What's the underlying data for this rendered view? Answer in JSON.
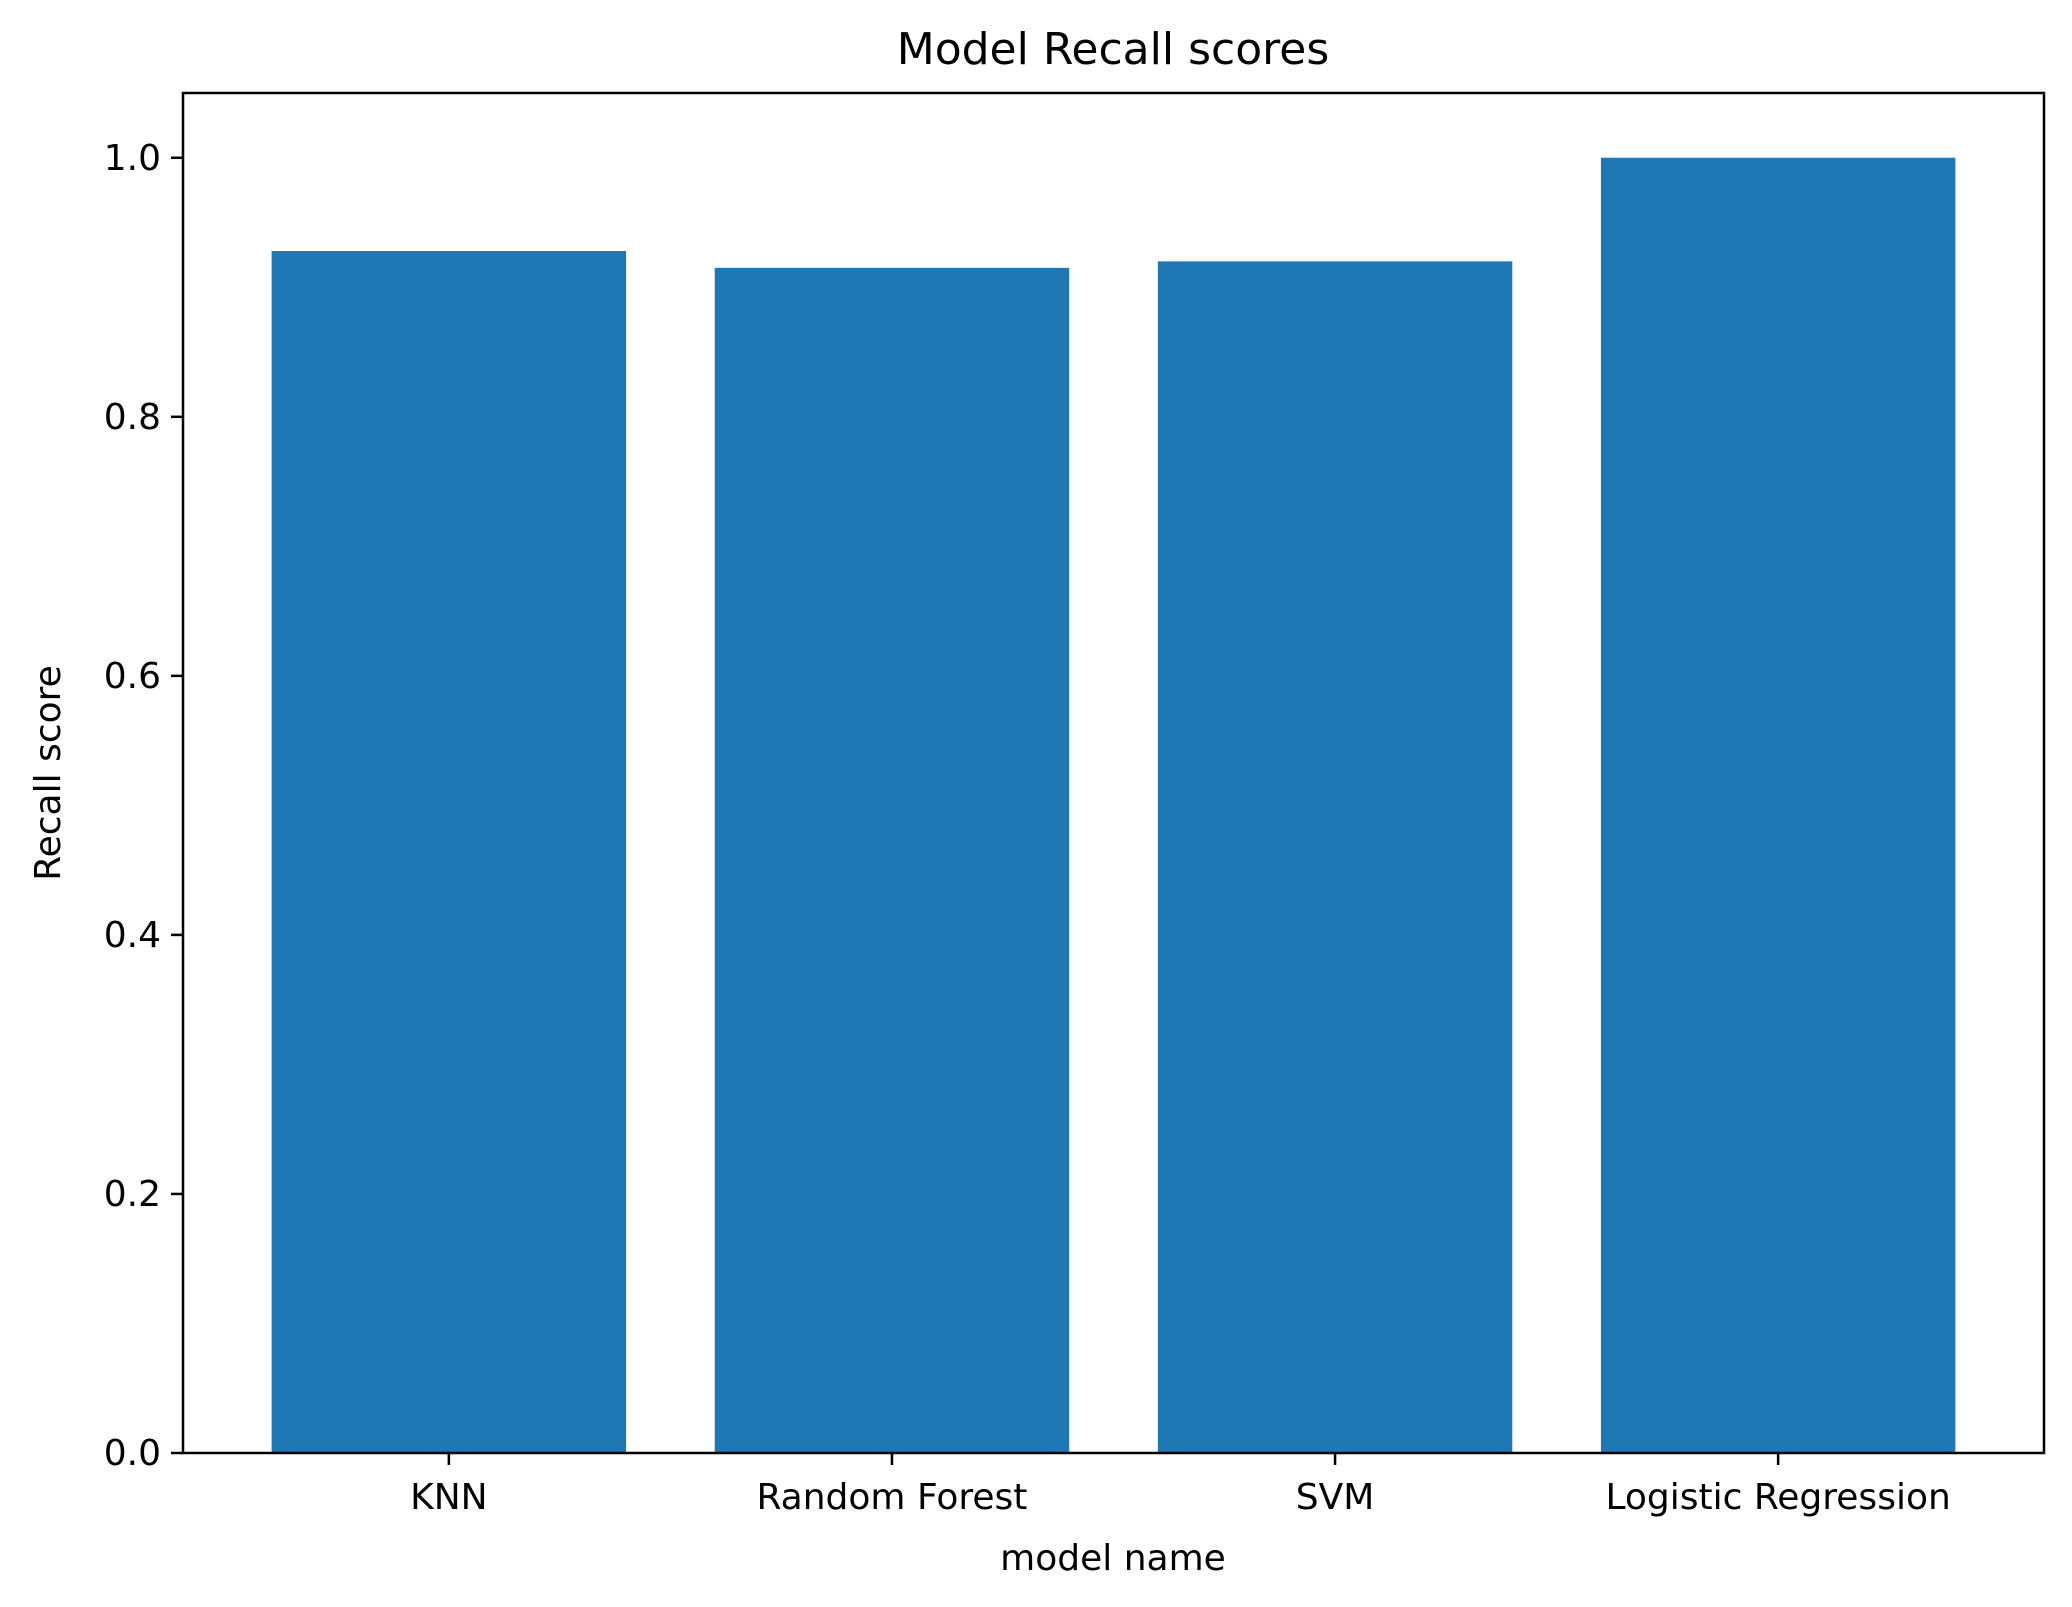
{
  "chart_data": {
    "type": "bar",
    "title": "Model Recall scores",
    "xlabel": "model name",
    "ylabel": "Recall score",
    "categories": [
      "KNN",
      "Random Forest",
      "SVM",
      "Logistic Regression"
    ],
    "values": [
      0.928,
      0.915,
      0.92,
      1.0
    ],
    "ylim": [
      0,
      1.05
    ],
    "yticks": [
      0.0,
      0.2,
      0.4,
      0.6,
      0.8,
      1.0
    ],
    "ytick_labels": [
      "0.0",
      "0.2",
      "0.4",
      "0.6",
      "0.8",
      "1.0"
    ],
    "grid": false,
    "bar_color": "#1f77b4"
  }
}
